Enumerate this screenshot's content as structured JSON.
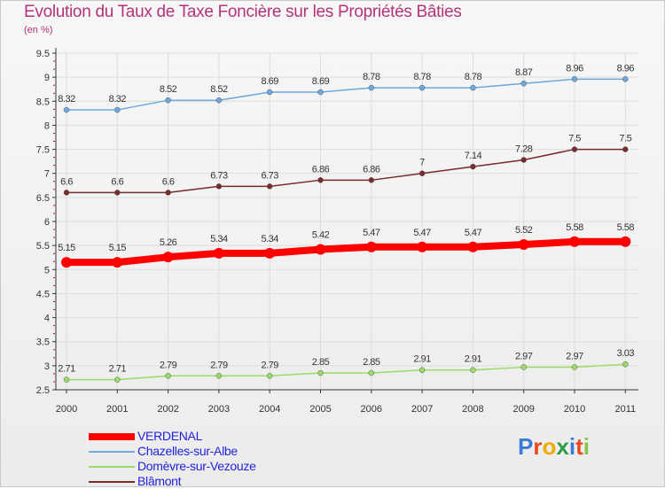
{
  "title": "Evolution du Taux de Taxe Foncière sur les Propriétés Bâties",
  "subtitle": "(en %)",
  "logo": {
    "letters": [
      "P",
      "r",
      "o",
      "x",
      "i",
      "t",
      "i"
    ],
    "colors": [
      "#3a7bd5",
      "#e8491d",
      "#f2a900",
      "#2e9e44",
      "#3a7bd5",
      "#e8491d",
      "#8bc34a"
    ]
  },
  "chart_data": {
    "type": "line",
    "title": "Evolution du Taux de Taxe Foncière sur les Propriétés Bâties",
    "ylabel": "(en %)",
    "xlabel": "",
    "categories": [
      "2000",
      "2001",
      "2002",
      "2003",
      "2004",
      "2005",
      "2006",
      "2007",
      "2008",
      "2009",
      "2010",
      "2011"
    ],
    "ylim": [
      2.5,
      9.5
    ],
    "yticks": [
      "2.5",
      "3",
      "3.5",
      "4",
      "4.5",
      "5",
      "5.5",
      "6",
      "6.5",
      "7",
      "7.5",
      "8",
      "8.5",
      "9",
      "9.5"
    ],
    "grid": true,
    "series": [
      {
        "name": "VERDENAL",
        "color": "#ff0000",
        "values": [
          5.15,
          5.15,
          5.26,
          5.34,
          5.34,
          5.42,
          5.47,
          5.47,
          5.47,
          5.52,
          5.58,
          5.58
        ],
        "labels": [
          "5.15",
          "5.15",
          "5.26",
          "5.34",
          "5.34",
          "5.42",
          "5.47",
          "5.47",
          "5.47",
          "5.52",
          "5.58",
          "5.58"
        ]
      },
      {
        "name": "Chazelles-sur-Albe",
        "color": "#6fa8dc",
        "values": [
          8.32,
          8.32,
          8.52,
          8.52,
          8.69,
          8.69,
          8.78,
          8.78,
          8.78,
          8.87,
          8.96,
          8.96
        ],
        "labels": [
          "8.32",
          "8.32",
          "8.52",
          "8.52",
          "8.69",
          "8.69",
          "8.78",
          "8.78",
          "8.78",
          "8.87",
          "8.96",
          "8.96"
        ]
      },
      {
        "name": "Domèvre-sur-Vezouze",
        "color": "#99dd66",
        "values": [
          2.71,
          2.71,
          2.79,
          2.79,
          2.79,
          2.85,
          2.85,
          2.91,
          2.91,
          2.97,
          2.97,
          3.03
        ],
        "labels": [
          "2.71",
          "2.71",
          "2.79",
          "2.79",
          "2.79",
          "2.85",
          "2.85",
          "2.91",
          "2.91",
          "2.97",
          "2.97",
          "3.03"
        ]
      },
      {
        "name": "Blâmont",
        "color": "#7a2a2a",
        "values": [
          6.6,
          6.6,
          6.6,
          6.73,
          6.73,
          6.86,
          6.86,
          7,
          7.14,
          7.28,
          7.5,
          7.5
        ],
        "labels": [
          "6.6",
          "6.6",
          "6.6",
          "6.73",
          "6.73",
          "6.86",
          "6.86",
          "7",
          "7.14",
          "7.28",
          "7.5",
          "7.5"
        ]
      }
    ]
  }
}
